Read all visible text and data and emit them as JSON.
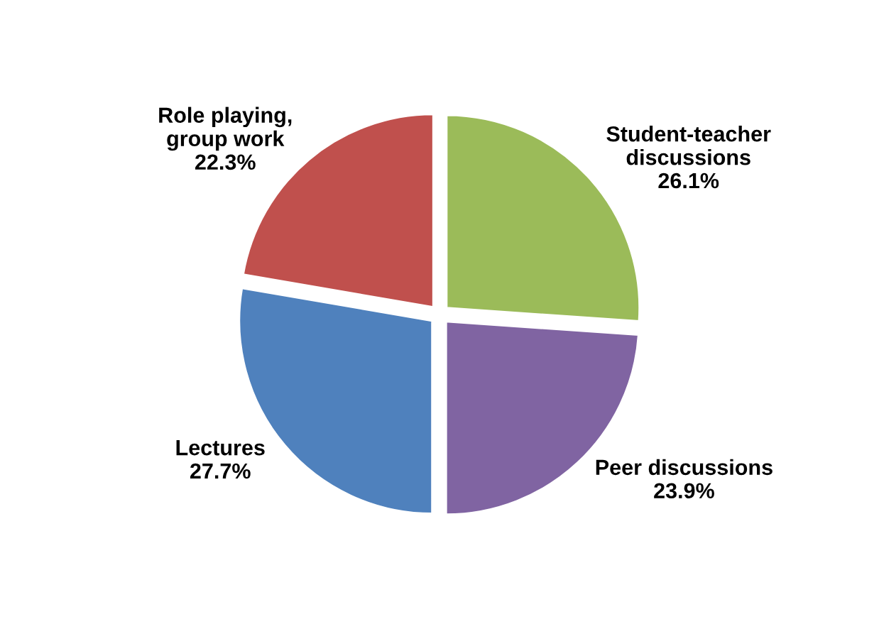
{
  "chart_data": {
    "type": "pie",
    "categories": [
      "Student-teacher\ndiscussions",
      "Peer discussions",
      "Lectures",
      "Role playing,\ngroup work"
    ],
    "values": [
      26.1,
      23.9,
      27.7,
      22.3
    ],
    "colors": [
      "#9bbb59",
      "#8064a2",
      "#4f81bd",
      "#c0504d"
    ],
    "value_labels": [
      "26.1%",
      "23.9%",
      "27.7%",
      "22.3%"
    ],
    "legend": false
  }
}
